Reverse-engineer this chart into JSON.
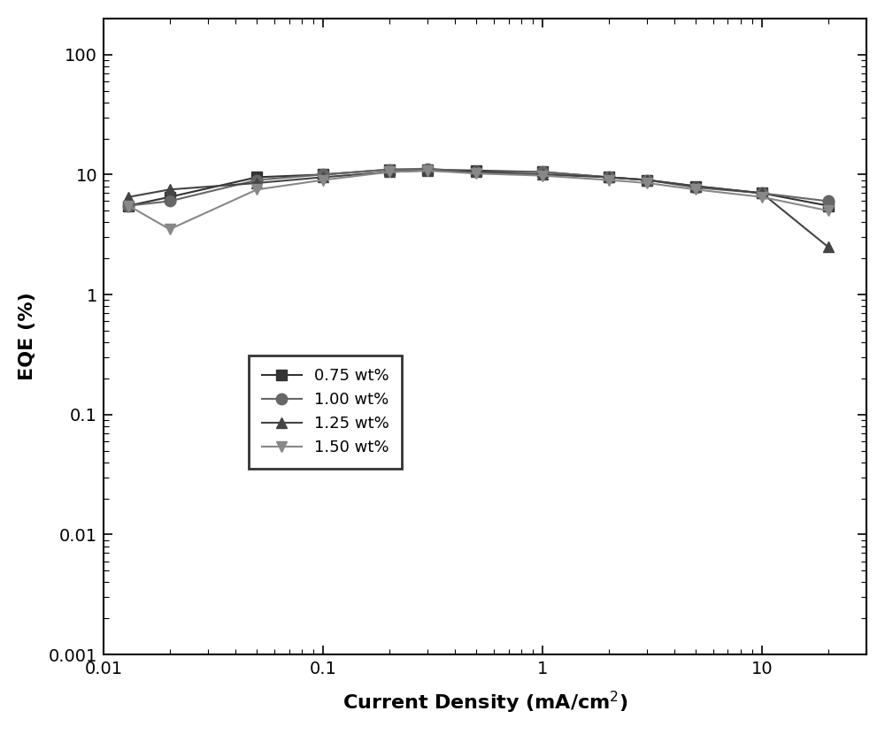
{
  "series": [
    {
      "label": "0.75 wt%",
      "color": "#333333",
      "marker": "s",
      "markersize": 8,
      "x": [
        0.013,
        0.02,
        0.05,
        0.1,
        0.2,
        0.3,
        0.5,
        1.0,
        2.0,
        3.0,
        5.0,
        10.0,
        20.0
      ],
      "y": [
        5.5,
        6.5,
        9.5,
        10.0,
        11.0,
        11.0,
        10.8,
        10.5,
        9.5,
        9.0,
        8.0,
        7.0,
        5.5
      ]
    },
    {
      "label": "1.00 wt%",
      "color": "#666666",
      "marker": "o",
      "markersize": 9,
      "x": [
        0.013,
        0.02,
        0.05,
        0.1,
        0.2,
        0.3,
        0.5,
        1.0,
        2.0,
        3.0,
        5.0,
        10.0,
        20.0
      ],
      "y": [
        5.5,
        6.0,
        9.0,
        10.0,
        11.0,
        11.2,
        10.5,
        10.5,
        9.5,
        9.0,
        7.8,
        7.0,
        6.0
      ]
    },
    {
      "label": "1.25 wt%",
      "color": "#444444",
      "marker": "^",
      "markersize": 9,
      "x": [
        0.013,
        0.02,
        0.05,
        0.1,
        0.2,
        0.3,
        0.5,
        1.0,
        2.0,
        3.0,
        5.0,
        10.0,
        20.0
      ],
      "y": [
        6.5,
        7.5,
        8.5,
        9.5,
        10.5,
        10.8,
        10.5,
        10.0,
        9.5,
        9.0,
        8.0,
        7.0,
        2.5
      ]
    },
    {
      "label": "1.50 wt%",
      "color": "#888888",
      "marker": "v",
      "markersize": 9,
      "x": [
        0.013,
        0.02,
        0.05,
        0.1,
        0.2,
        0.3,
        0.5,
        1.0,
        2.0,
        3.0,
        5.0,
        10.0,
        20.0
      ],
      "y": [
        5.5,
        3.5,
        7.5,
        9.0,
        10.5,
        10.8,
        10.2,
        9.8,
        9.0,
        8.5,
        7.5,
        6.5,
        5.0
      ]
    }
  ],
  "xlabel": "Current Density (mA/cm$^2$)",
  "ylabel": "EQE (%)",
  "xlim": [
    0.01,
    30
  ],
  "ylim": [
    0.001,
    200
  ],
  "linewidth": 1.5,
  "background_color": "#ffffff",
  "tick_label_fontsize": 14,
  "axis_label_fontsize": 16,
  "legend_fontsize": 13,
  "xticks": [
    0.01,
    0.1,
    1,
    10
  ],
  "xtick_labels": [
    "0.01",
    "0.1",
    "1",
    "10"
  ],
  "yticks": [
    0.001,
    0.01,
    0.1,
    1,
    10,
    100
  ],
  "ytick_labels": [
    "0.001",
    "0.01",
    "0.1",
    "1",
    "10",
    "100"
  ]
}
